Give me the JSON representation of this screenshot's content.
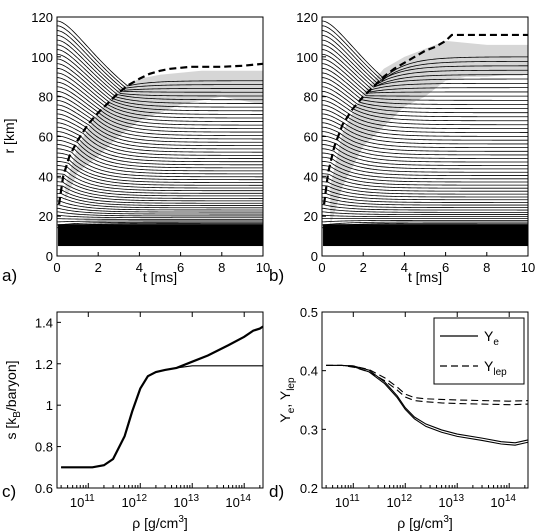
{
  "chart_data": [
    {
      "panel_label": "a)",
      "type": "line",
      "xlabel": "t [ms]",
      "ylabel": "r [km]",
      "xlim": [
        0,
        10
      ],
      "ylim": [
        0,
        120
      ],
      "xticks": [
        0,
        2,
        4,
        6,
        8,
        10
      ],
      "yticks": [
        0,
        20,
        40,
        60,
        80,
        100,
        120
      ],
      "grid": false,
      "shock": {
        "x": [
          0.1,
          0.3,
          0.6,
          1.0,
          1.5,
          2.0,
          2.5,
          3.0,
          3.5,
          4.0,
          4.5,
          5.0,
          5.5,
          6.0,
          6.5,
          7.0,
          8.0,
          9.0,
          10.0
        ],
        "y": [
          26,
          40,
          50,
          58,
          66,
          72,
          77,
          82,
          86,
          89,
          91.5,
          93,
          94,
          94.5,
          95,
          95,
          95,
          95.5,
          96.5
        ]
      },
      "shock_end_t": 10.0,
      "shaded_region": {
        "t": [
          0.4,
          1,
          2,
          3,
          4,
          5,
          6,
          7,
          8,
          9,
          10
        ],
        "r_low": [
          28,
          42,
          50,
          60,
          68,
          72,
          76,
          78,
          80,
          78,
          76
        ],
        "r_high": [
          35,
          55,
          72,
          84,
          89,
          91,
          92,
          93,
          93,
          93,
          93
        ]
      },
      "dense_band_r": [
        5,
        16
      ],
      "trajectories": {
        "count": 50,
        "r_initial_max": 118,
        "r_core": 13,
        "inner_final_max": 88,
        "inner_final_min": 16
      }
    },
    {
      "panel_label": "b)",
      "type": "line",
      "xlabel": "t [ms]",
      "ylabel": "",
      "xlim": [
        0,
        10
      ],
      "ylim": [
        0,
        120
      ],
      "xticks": [
        0,
        2,
        4,
        6,
        8,
        10
      ],
      "yticks": [
        0,
        20,
        40,
        60,
        80,
        100,
        120
      ],
      "grid": false,
      "shock": {
        "x": [
          0.1,
          0.3,
          0.6,
          1.0,
          1.5,
          2.0,
          2.5,
          3.0,
          3.5,
          4.0,
          4.5,
          5.0,
          5.5,
          6.0,
          6.3,
          7.0,
          8.0,
          9.0,
          10.0
        ],
        "y": [
          26,
          42,
          55,
          66,
          74,
          80,
          85,
          90,
          94,
          97,
          100,
          103,
          105,
          108,
          111,
          111,
          111,
          111,
          111
        ]
      },
      "shock_end_t": 6.3,
      "shaded_region": {
        "t": [
          0.4,
          1,
          2,
          3,
          4,
          5,
          6,
          7,
          8,
          9,
          10
        ],
        "r_low": [
          15,
          35,
          55,
          65,
          75,
          80,
          88,
          90,
          90,
          91,
          91
        ],
        "r_high": [
          35,
          62,
          82,
          94,
          100,
          104,
          108,
          107,
          106,
          106,
          106
        ]
      },
      "dense_band_r": [
        5,
        16
      ],
      "trajectories": {
        "count": 50,
        "r_initial_max": 118,
        "r_core": 13,
        "inner_final_max": 100,
        "inner_final_min": 16
      }
    },
    {
      "panel_label": "c)",
      "type": "line",
      "xlabel": "ρ [g/cm³]",
      "ylabel": "s [k_B/baryon]",
      "xscale": "log",
      "xlim": [
        25000000000.0,
        230000000000000.0
      ],
      "ylim": [
        0.6,
        1.45
      ],
      "xtick_labels": [
        "10^11",
        "10^12",
        "10^13",
        "10^14"
      ],
      "yticks": [
        0.6,
        0.8,
        1.0,
        1.2,
        1.4
      ],
      "ytick_labels": [
        "0.6",
        "0.8",
        "1",
        "1.2",
        "1.4"
      ],
      "grid": false,
      "series": [
        {
          "style": "solid thick",
          "x": [
            30000000000.0,
            50000000000.0,
            80000000000.0,
            120000000000.0,
            200000000000.0,
            300000000000.0,
            500000000000.0,
            700000000000.0,
            1000000000000.0,
            1400000000000.0,
            2000000000000.0,
            3000000000000.0,
            5000000000000.0,
            10000000000000.0,
            20000000000000.0,
            50000000000000.0,
            100000000000000.0,
            150000000000000.0,
            200000000000000.0,
            230000000000000.0
          ],
          "y": [
            0.7,
            0.7,
            0.7,
            0.7,
            0.71,
            0.74,
            0.85,
            0.97,
            1.08,
            1.14,
            1.16,
            1.17,
            1.18,
            1.21,
            1.24,
            1.29,
            1.33,
            1.36,
            1.37,
            1.38
          ]
        },
        {
          "style": "solid thin",
          "x": [
            30000000000.0,
            50000000000.0,
            80000000000.0,
            120000000000.0,
            200000000000.0,
            300000000000.0,
            500000000000.0,
            700000000000.0,
            1000000000000.0,
            1400000000000.0,
            2000000000000.0,
            3000000000000.0,
            5000000000000.0,
            10000000000000.0,
            20000000000000.0,
            50000000000000.0,
            100000000000000.0,
            230000000000000.0
          ],
          "y": [
            0.7,
            0.7,
            0.7,
            0.7,
            0.71,
            0.74,
            0.85,
            0.97,
            1.08,
            1.14,
            1.16,
            1.17,
            1.18,
            1.19,
            1.19,
            1.19,
            1.19,
            1.19
          ]
        }
      ]
    },
    {
      "panel_label": "d)",
      "type": "line",
      "xlabel": "ρ [g/cm³]",
      "ylabel": "Y_e, Y_lep",
      "xscale": "log",
      "xlim": [
        25000000000.0,
        230000000000000.0
      ],
      "ylim": [
        0.2,
        0.5
      ],
      "xtick_labels": [
        "10^11",
        "10^12",
        "10^13",
        "10^14"
      ],
      "yticks": [
        0.2,
        0.3,
        0.4,
        0.5
      ],
      "ytick_labels": [
        "0.2",
        "0.3",
        "0.4",
        "0.5"
      ],
      "grid": false,
      "legend_position": "top-right",
      "legend": [
        {
          "symbol": "Y",
          "sub": "e",
          "style": "solid"
        },
        {
          "symbol": "Y",
          "sub": "lep",
          "style": "dashed"
        }
      ],
      "series": [
        {
          "style": "solid",
          "x": [
            30000000000.0,
            60000000000.0,
            100000000000.0,
            200000000000.0,
            400000000000.0,
            700000000000.0,
            1000000000000.0,
            1500000000000.0,
            2500000000000.0,
            5000000000000.0,
            10000000000000.0,
            30000000000000.0,
            70000000000000.0,
            130000000000000.0,
            230000000000000.0
          ],
          "y": [
            0.409,
            0.409,
            0.407,
            0.398,
            0.378,
            0.354,
            0.334,
            0.318,
            0.305,
            0.295,
            0.288,
            0.281,
            0.275,
            0.273,
            0.278
          ]
        },
        {
          "style": "solid",
          "x": [
            30000000000.0,
            60000000000.0,
            100000000000.0,
            200000000000.0,
            400000000000.0,
            700000000000.0,
            1000000000000.0,
            1500000000000.0,
            2500000000000.0,
            5000000000000.0,
            10000000000000.0,
            30000000000000.0,
            70000000000000.0,
            130000000000000.0,
            230000000000000.0
          ],
          "y": [
            0.409,
            0.409,
            0.408,
            0.401,
            0.381,
            0.357,
            0.337,
            0.321,
            0.309,
            0.299,
            0.292,
            0.285,
            0.279,
            0.277,
            0.282
          ]
        },
        {
          "style": "dashed",
          "x": [
            30000000000.0,
            60000000000.0,
            100000000000.0,
            200000000000.0,
            400000000000.0,
            700000000000.0,
            1000000000000.0,
            1500000000000.0,
            2500000000000.0,
            5000000000000.0,
            10000000000000.0,
            30000000000000.0,
            100000000000000.0,
            230000000000000.0
          ],
          "y": [
            0.409,
            0.409,
            0.408,
            0.402,
            0.388,
            0.372,
            0.36,
            0.354,
            0.352,
            0.351,
            0.35,
            0.349,
            0.348,
            0.349
          ]
        },
        {
          "style": "dashed",
          "x": [
            30000000000.0,
            60000000000.0,
            100000000000.0,
            200000000000.0,
            400000000000.0,
            700000000000.0,
            1000000000000.0,
            1500000000000.0,
            2500000000000.0,
            5000000000000.0,
            10000000000000.0,
            30000000000000.0,
            100000000000000.0,
            230000000000000.0
          ],
          "y": [
            0.409,
            0.409,
            0.406,
            0.398,
            0.383,
            0.367,
            0.355,
            0.349,
            0.347,
            0.345,
            0.344,
            0.343,
            0.342,
            0.343
          ]
        }
      ]
    }
  ]
}
